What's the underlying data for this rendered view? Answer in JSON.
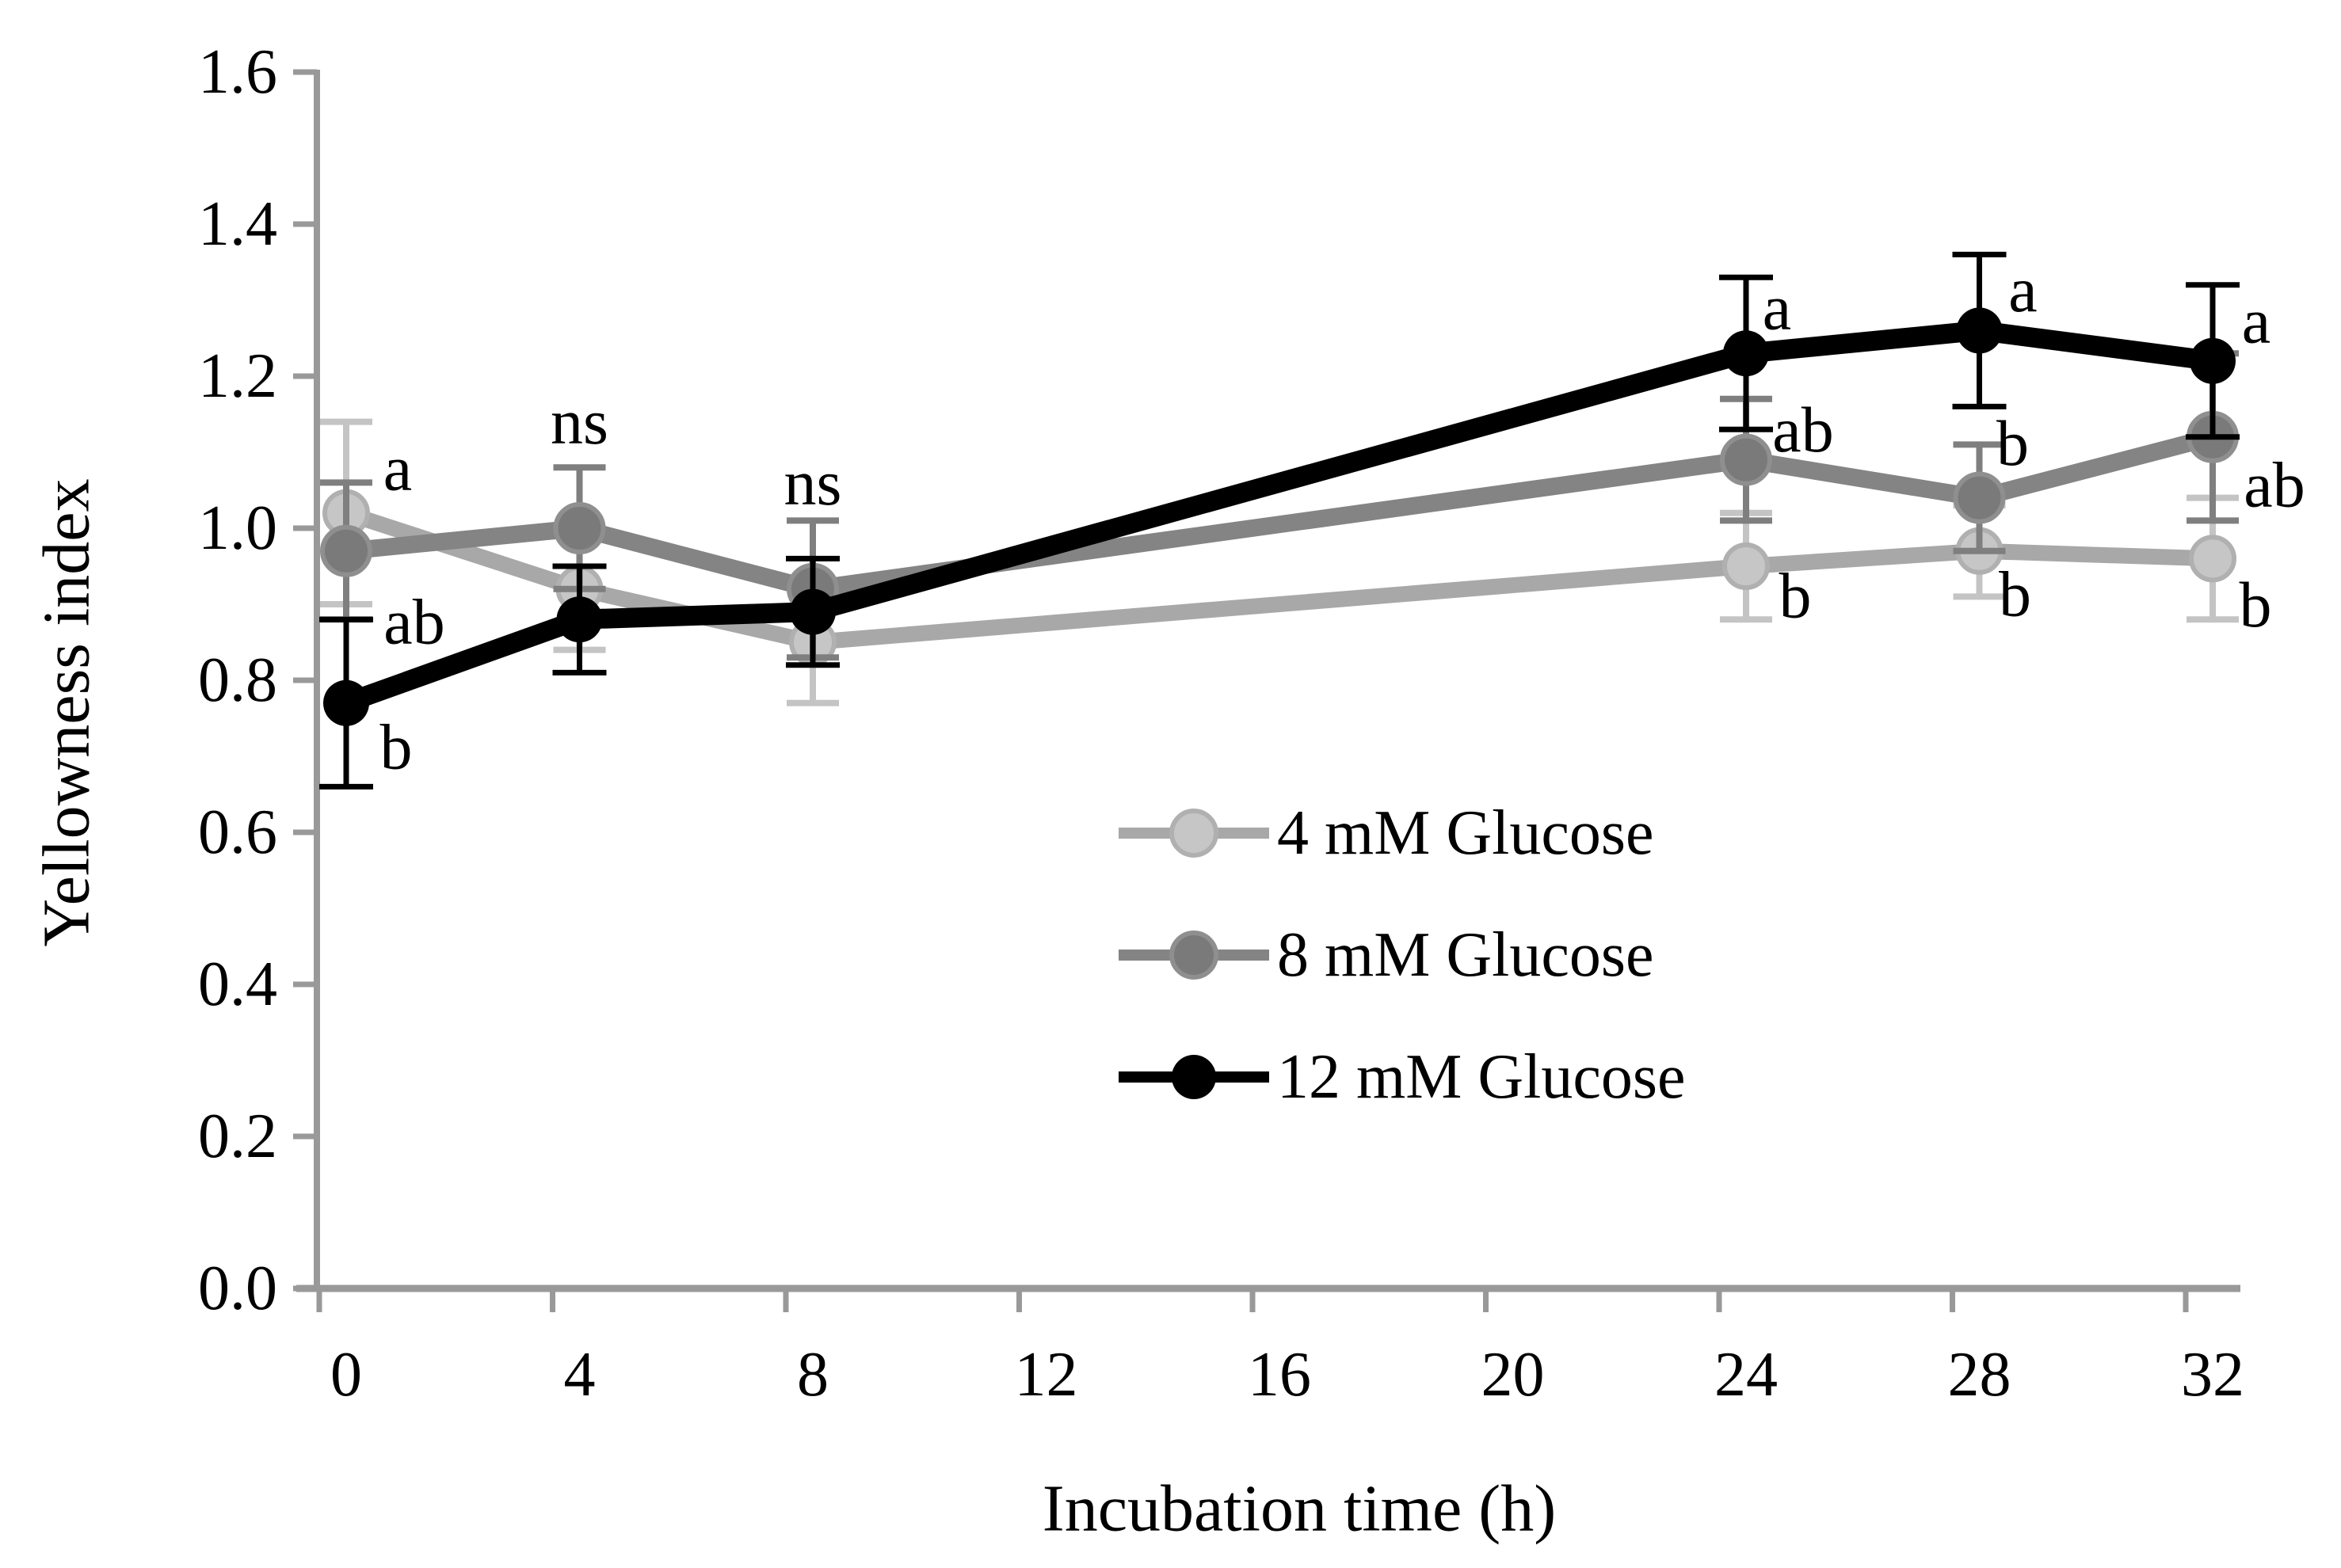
{
  "chart_data": {
    "type": "line",
    "title": "",
    "xlabel": "Incubation time (h)",
    "ylabel": "Yellowness index",
    "x": [
      0,
      4,
      8,
      24,
      28,
      32
    ],
    "x_ticks": [
      0,
      4,
      8,
      12,
      16,
      20,
      24,
      28,
      32
    ],
    "x_tick_labels": [
      "0",
      "4",
      "8",
      "12",
      "16",
      "20",
      "24",
      "28",
      "32"
    ],
    "ylim": [
      0.0,
      1.6
    ],
    "y_ticks": [
      0.0,
      0.2,
      0.4,
      0.6,
      0.8,
      1.0,
      1.2,
      1.4,
      1.6
    ],
    "y_tick_labels": [
      "0.0",
      "0.2",
      "0.4",
      "0.6",
      "0.8",
      "1.0",
      "1.2",
      "1.4",
      "1.6"
    ],
    "grid": false,
    "legend_position": "inside center-right",
    "axis_color": "#999999",
    "series": [
      {
        "name": "4 mM Glucose",
        "values": [
          1.02,
          0.92,
          0.85,
          0.95,
          0.97,
          0.96
        ],
        "errors": [
          0.12,
          0.08,
          0.08,
          0.07,
          0.06,
          0.08
        ],
        "sig_labels": [
          "a",
          "",
          "",
          "b",
          "b",
          "b"
        ],
        "line_color": "#a8a8a8",
        "marker_fill": "#c6c6c6",
        "marker_stroke": "#b0b0b0",
        "error_color": "#c4c4c4"
      },
      {
        "name": "8 mM Glucose",
        "values": [
          0.97,
          1.0,
          0.92,
          1.09,
          1.04,
          1.12
        ],
        "errors": [
          0.09,
          0.08,
          0.09,
          0.08,
          0.07,
          0.11
        ],
        "sig_labels": [
          "ab",
          "",
          "",
          "ab",
          "b",
          "ab"
        ],
        "line_color": "#848484",
        "marker_fill": "#7a7a7a",
        "marker_stroke": "#8f8f8f",
        "error_color": "#7f7f7f"
      },
      {
        "name": "12 mM Glucose",
        "values": [
          0.77,
          0.88,
          0.89,
          1.23,
          1.26,
          1.22
        ],
        "errors": [
          0.11,
          0.07,
          0.07,
          0.1,
          0.1,
          0.1
        ],
        "sig_labels": [
          "b",
          "",
          "",
          "a",
          "a",
          "a"
        ],
        "line_color": "#000000",
        "marker_fill": "#000000",
        "marker_stroke": "#000000",
        "error_color": "#000000"
      }
    ],
    "annotations": [
      {
        "text": "ns",
        "x": 4,
        "y": 1.14
      },
      {
        "text": "ns",
        "x": 8,
        "y": 1.06
      }
    ]
  }
}
